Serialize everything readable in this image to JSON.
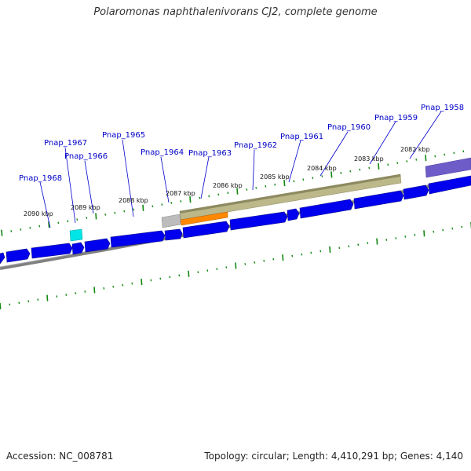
{
  "title": "Polaromonas naphthalenivorans CJ2, complete genome",
  "footer": {
    "accession": "Accession: NC_008781",
    "summary": "Topology: circular; Length: 4,410,291 bp; Genes: 4,140"
  },
  "colors": {
    "gene_forward": "#0000ee",
    "backbone": "#8c8c8c",
    "tick": "#118811",
    "label_line": "#0000cc",
    "feature_khaki": "#bcb88a",
    "feature_orange": "#ff8800",
    "feature_grey": "#b8b8b8",
    "feature_cyan": "#00e5e5",
    "feature_purple": "#6e5cc8"
  },
  "gene_labels": [
    "Pnap_1968",
    "Pnap_1967",
    "Pnap_1966",
    "Pnap_1965",
    "Pnap_1964",
    "Pnap_1963",
    "Pnap_1962",
    "Pnap_1961",
    "Pnap_1960",
    "Pnap_1959",
    "Pnap_1958"
  ],
  "kbp_labels": [
    "2090 kbp",
    "2089 kbp",
    "2088 kbp",
    "2087 kbp",
    "2086 kbp",
    "2085 kbp",
    "2084 kbp",
    "2083 kbp",
    "2082 kbp"
  ]
}
